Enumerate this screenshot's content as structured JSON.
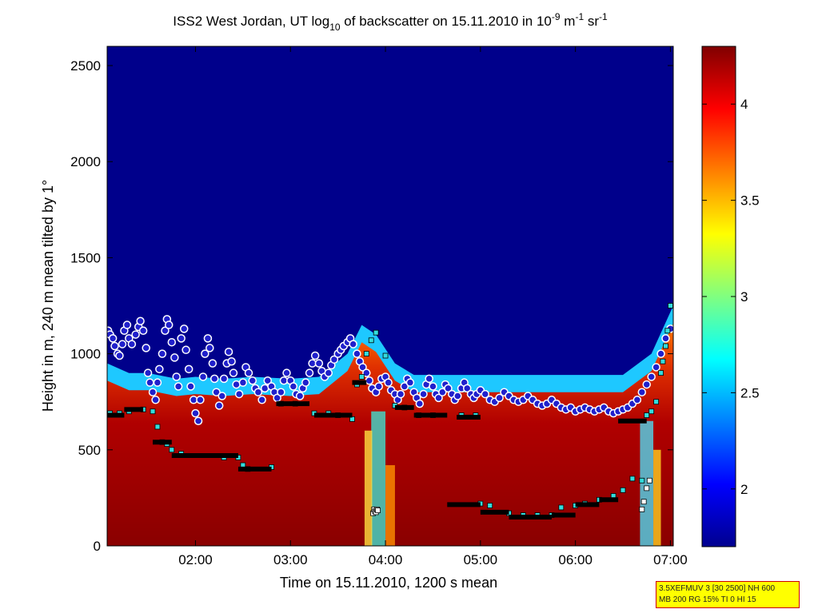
{
  "chart_data": {
    "type": "heatmap",
    "title": {
      "prefix": "ISS2 West Jordan, UT log",
      "log_sub": "10",
      "mid": " of backscatter on 15.11.2010 in 10",
      "exp1": "-9",
      "unit_m": " m",
      "exp2": "-1",
      "unit_sr": " sr",
      "exp3": "-1"
    },
    "xlabel": "Time on 15.11.2010, 1200 s mean",
    "ylabel": "Height in m, 240 m mean tilted by 1°",
    "x_range_hours": [
      1.07,
      7.03
    ],
    "x_ticks": [
      {
        "hour": 2,
        "label": "02:00"
      },
      {
        "hour": 3,
        "label": "03:00"
      },
      {
        "hour": 4,
        "label": "04:00"
      },
      {
        "hour": 5,
        "label": "05:00"
      },
      {
        "hour": 6,
        "label": "06:00"
      },
      {
        "hour": 7,
        "label": "07:00"
      }
    ],
    "ylim": [
      0,
      2600
    ],
    "y_ticks": [
      0,
      500,
      1000,
      1500,
      2000,
      2500
    ],
    "colorbar": {
      "range": [
        1.7,
        4.3
      ],
      "ticks": [
        {
          "v": 2,
          "label": "2"
        },
        {
          "v": 2.5,
          "label": "2.5"
        },
        {
          "v": 3,
          "label": "3"
        },
        {
          "v": 3.5,
          "label": "3.5"
        },
        {
          "v": 4,
          "label": "4"
        }
      ],
      "colormap": "jet"
    },
    "aerosol_top_height": [
      [
        1.07,
        950
      ],
      [
        1.3,
        900
      ],
      [
        1.5,
        900
      ],
      [
        1.8,
        870
      ],
      [
        2.0,
        880
      ],
      [
        2.3,
        870
      ],
      [
        2.6,
        880
      ],
      [
        3.0,
        870
      ],
      [
        3.3,
        880
      ],
      [
        3.6,
        1000
      ],
      [
        3.75,
        1150
      ],
      [
        3.9,
        1100
      ],
      [
        4.1,
        950
      ],
      [
        4.3,
        890
      ],
      [
        4.6,
        890
      ],
      [
        5.0,
        890
      ],
      [
        5.5,
        890
      ],
      [
        6.0,
        890
      ],
      [
        6.5,
        890
      ],
      [
        6.8,
        1000
      ],
      [
        7.03,
        1250
      ]
    ],
    "series": [
      {
        "name": "layer_points_circles",
        "points": [
          [
            1.08,
            1120
          ],
          [
            1.1,
            1100
          ],
          [
            1.13,
            1080
          ],
          [
            1.15,
            1040
          ],
          [
            1.18,
            1000
          ],
          [
            1.2,
            990
          ],
          [
            1.23,
            1050
          ],
          [
            1.25,
            1120
          ],
          [
            1.28,
            1150
          ],
          [
            1.3,
            1080
          ],
          [
            1.33,
            1050
          ],
          [
            1.37,
            1100
          ],
          [
            1.4,
            1140
          ],
          [
            1.42,
            1170
          ],
          [
            1.45,
            1120
          ],
          [
            1.48,
            1030
          ],
          [
            1.5,
            900
          ],
          [
            1.52,
            850
          ],
          [
            1.55,
            800
          ],
          [
            1.58,
            760
          ],
          [
            1.6,
            850
          ],
          [
            1.62,
            920
          ],
          [
            1.65,
            1000
          ],
          [
            1.68,
            1120
          ],
          [
            1.7,
            1180
          ],
          [
            1.72,
            1150
          ],
          [
            1.75,
            1060
          ],
          [
            1.78,
            980
          ],
          [
            1.8,
            880
          ],
          [
            1.82,
            830
          ],
          [
            1.85,
            1080
          ],
          [
            1.88,
            1130
          ],
          [
            1.9,
            1020
          ],
          [
            1.93,
            920
          ],
          [
            1.95,
            830
          ],
          [
            1.98,
            760
          ],
          [
            2.0,
            690
          ],
          [
            2.03,
            650
          ],
          [
            2.05,
            760
          ],
          [
            2.08,
            880
          ],
          [
            2.1,
            1000
          ],
          [
            2.13,
            1080
          ],
          [
            2.15,
            1030
          ],
          [
            2.18,
            950
          ],
          [
            2.2,
            870
          ],
          [
            2.22,
            800
          ],
          [
            2.25,
            730
          ],
          [
            2.28,
            780
          ],
          [
            2.3,
            870
          ],
          [
            2.33,
            950
          ],
          [
            2.35,
            1010
          ],
          [
            2.38,
            960
          ],
          [
            2.4,
            900
          ],
          [
            2.43,
            840
          ],
          [
            2.46,
            790
          ],
          [
            2.5,
            850
          ],
          [
            2.53,
            930
          ],
          [
            2.56,
            900
          ],
          [
            2.6,
            860
          ],
          [
            2.63,
            820
          ],
          [
            2.66,
            800
          ],
          [
            2.7,
            760
          ],
          [
            2.73,
            820
          ],
          [
            2.76,
            860
          ],
          [
            2.8,
            830
          ],
          [
            2.83,
            800
          ],
          [
            2.86,
            770
          ],
          [
            2.9,
            800
          ],
          [
            2.93,
            860
          ],
          [
            2.96,
            900
          ],
          [
            3.0,
            860
          ],
          [
            3.03,
            830
          ],
          [
            3.06,
            790
          ],
          [
            3.1,
            780
          ],
          [
            3.13,
            820
          ],
          [
            3.16,
            850
          ],
          [
            3.2,
            900
          ],
          [
            3.23,
            950
          ],
          [
            3.26,
            990
          ],
          [
            3.3,
            950
          ],
          [
            3.33,
            910
          ],
          [
            3.36,
            880
          ],
          [
            3.4,
            900
          ],
          [
            3.43,
            940
          ],
          [
            3.46,
            970
          ],
          [
            3.5,
            1000
          ],
          [
            3.53,
            1020
          ],
          [
            3.56,
            1040
          ],
          [
            3.6,
            1060
          ],
          [
            3.63,
            1080
          ],
          [
            3.66,
            1050
          ],
          [
            3.7,
            1000
          ],
          [
            3.73,
            960
          ],
          [
            3.76,
            930
          ],
          [
            3.8,
            900
          ],
          [
            3.83,
            860
          ],
          [
            3.86,
            820
          ],
          [
            3.9,
            800
          ],
          [
            3.93,
            830
          ],
          [
            3.96,
            870
          ],
          [
            4.0,
            880
          ],
          [
            4.03,
            850
          ],
          [
            4.06,
            810
          ],
          [
            4.1,
            790
          ],
          [
            4.13,
            760
          ],
          [
            4.16,
            790
          ],
          [
            4.2,
            830
          ],
          [
            4.23,
            870
          ],
          [
            4.26,
            850
          ],
          [
            4.3,
            800
          ],
          [
            4.33,
            770
          ],
          [
            4.36,
            740
          ],
          [
            4.4,
            790
          ],
          [
            4.43,
            840
          ],
          [
            4.46,
            870
          ],
          [
            4.5,
            830
          ],
          [
            4.53,
            790
          ],
          [
            4.56,
            770
          ],
          [
            4.6,
            800
          ],
          [
            4.63,
            840
          ],
          [
            4.66,
            820
          ],
          [
            4.7,
            790
          ],
          [
            4.73,
            760
          ],
          [
            4.76,
            780
          ],
          [
            4.8,
            820
          ],
          [
            4.83,
            850
          ],
          [
            4.86,
            820
          ],
          [
            4.9,
            790
          ],
          [
            4.93,
            770
          ],
          [
            4.96,
            790
          ],
          [
            5.0,
            810
          ],
          [
            5.05,
            790
          ],
          [
            5.1,
            760
          ],
          [
            5.15,
            750
          ],
          [
            5.2,
            770
          ],
          [
            5.25,
            800
          ],
          [
            5.3,
            780
          ],
          [
            5.35,
            760
          ],
          [
            5.4,
            750
          ],
          [
            5.45,
            760
          ],
          [
            5.5,
            780
          ],
          [
            5.55,
            760
          ],
          [
            5.6,
            740
          ],
          [
            5.65,
            730
          ],
          [
            5.7,
            740
          ],
          [
            5.75,
            760
          ],
          [
            5.8,
            740
          ],
          [
            5.85,
            720
          ],
          [
            5.9,
            710
          ],
          [
            5.95,
            720
          ],
          [
            6.0,
            700
          ],
          [
            6.05,
            710
          ],
          [
            6.1,
            720
          ],
          [
            6.15,
            710
          ],
          [
            6.2,
            700
          ],
          [
            6.25,
            710
          ],
          [
            6.3,
            720
          ],
          [
            6.35,
            700
          ],
          [
            6.4,
            690
          ],
          [
            6.45,
            700
          ],
          [
            6.5,
            710
          ],
          [
            6.55,
            720
          ],
          [
            6.6,
            740
          ],
          [
            6.65,
            760
          ],
          [
            6.7,
            800
          ],
          [
            6.75,
            840
          ],
          [
            6.8,
            880
          ],
          [
            6.85,
            930
          ],
          [
            6.9,
            1000
          ],
          [
            6.95,
            1080
          ],
          [
            7.0,
            1130
          ]
        ]
      },
      {
        "name": "layer_points_squares",
        "points": [
          [
            1.1,
            690
          ],
          [
            1.2,
            690
          ],
          [
            1.3,
            700
          ],
          [
            1.45,
            710
          ],
          [
            1.55,
            700
          ],
          [
            1.6,
            620
          ],
          [
            1.65,
            540
          ],
          [
            1.7,
            530
          ],
          [
            1.75,
            500
          ],
          [
            1.85,
            480
          ],
          [
            2.3,
            460
          ],
          [
            2.45,
            460
          ],
          [
            2.5,
            420
          ],
          [
            2.55,
            400
          ],
          [
            2.8,
            410
          ],
          [
            2.9,
            740
          ],
          [
            3.05,
            740
          ],
          [
            3.25,
            690
          ],
          [
            3.4,
            690
          ],
          [
            3.5,
            680
          ],
          [
            3.65,
            660
          ],
          [
            3.7,
            840
          ],
          [
            3.75,
            880
          ],
          [
            3.8,
            1000
          ],
          [
            3.85,
            1070
          ],
          [
            3.9,
            1110
          ],
          [
            4.0,
            990
          ],
          [
            4.1,
            730
          ],
          [
            4.2,
            720
          ],
          [
            4.35,
            680
          ],
          [
            4.5,
            680
          ],
          [
            4.8,
            680
          ],
          [
            4.95,
            680
          ],
          [
            5.0,
            220
          ],
          [
            5.1,
            210
          ],
          [
            5.3,
            170
          ],
          [
            5.45,
            160
          ],
          [
            5.6,
            160
          ],
          [
            5.75,
            160
          ],
          [
            5.85,
            200
          ],
          [
            6.0,
            210
          ],
          [
            6.1,
            220
          ],
          [
            6.25,
            240
          ],
          [
            6.4,
            260
          ],
          [
            6.5,
            290
          ],
          [
            6.6,
            350
          ],
          [
            6.7,
            340
          ],
          [
            6.75,
            680
          ],
          [
            6.8,
            700
          ],
          [
            6.85,
            750
          ],
          [
            6.9,
            900
          ],
          [
            6.92,
            960
          ],
          [
            6.95,
            1040
          ],
          [
            6.97,
            1120
          ],
          [
            7.0,
            1250
          ]
        ]
      },
      {
        "name": "mixing_layer_segments",
        "segments": [
          [
            1.07,
            1.25,
            680
          ],
          [
            1.25,
            1.45,
            710
          ],
          [
            1.55,
            1.75,
            540
          ],
          [
            1.75,
            2.45,
            470
          ],
          [
            2.45,
            2.8,
            400
          ],
          [
            2.85,
            3.2,
            740
          ],
          [
            3.25,
            3.65,
            680
          ],
          [
            3.65,
            3.8,
            850
          ],
          [
            4.1,
            4.3,
            720
          ],
          [
            4.3,
            4.65,
            680
          ],
          [
            4.75,
            5.0,
            670
          ],
          [
            4.65,
            5.0,
            215
          ],
          [
            5.0,
            5.3,
            175
          ],
          [
            5.3,
            5.75,
            150
          ],
          [
            5.75,
            6.0,
            160
          ],
          [
            6.0,
            6.25,
            215
          ],
          [
            6.25,
            6.45,
            240
          ],
          [
            6.45,
            6.75,
            650
          ]
        ]
      },
      {
        "name": "aerosol_columns_low_signal",
        "points": [
          [
            3.87,
            170
          ],
          [
            3.88,
            190
          ],
          [
            3.89,
            180
          ],
          [
            3.9,
            175
          ],
          [
            3.91,
            190
          ],
          [
            3.92,
            185
          ],
          [
            6.7,
            190
          ],
          [
            6.72,
            230
          ],
          [
            6.75,
            300
          ],
          [
            6.78,
            340
          ]
        ]
      }
    ]
  },
  "info_box": {
    "line1": "3.5XEFMUV 3 [30 2500] NH 600",
    "line2": "MB 200 RG 15% TI 0 HI 15"
  },
  "colors": {
    "background_sky": "#00008b",
    "circle_fill": "#2020cc",
    "circle_edge": "#ffffff",
    "square_fill": "#33dddd",
    "segment": "#000000",
    "info_bg": "#ffff00",
    "info_border": "#cc0000"
  }
}
